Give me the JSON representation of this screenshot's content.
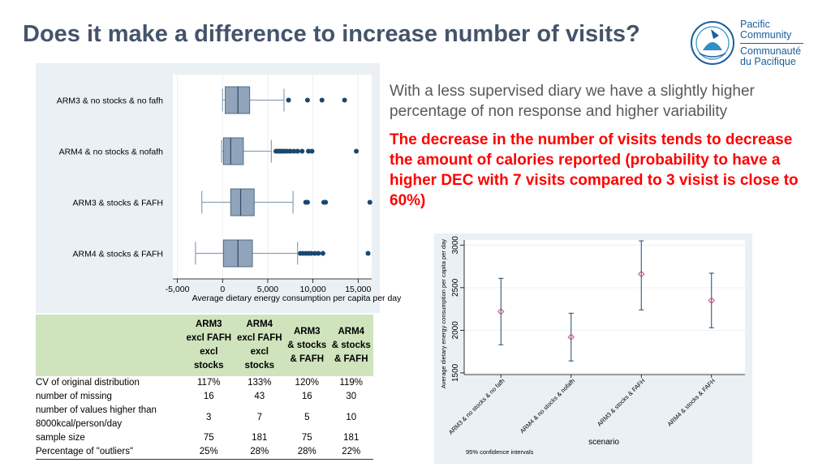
{
  "title": "Does it make a difference to increase number of visits?",
  "logo": {
    "line1": "Pacific",
    "line2": "Community",
    "line3": "Communauté",
    "line4": "du Pacifique"
  },
  "text_grey": "With a less supervised diary we have a slightly higher percentage of non response and higher variability",
  "text_red": "The decrease in the number of visits tends to decrease the amount of calories reported (probability to have a higher DEC with 7 visits compared to 3 visist is close to 60%)",
  "table": {
    "headers": [
      [
        "ARM3",
        "excl FAFH",
        "excl",
        "stocks"
      ],
      [
        "ARM4",
        "excl FAFH",
        "excl",
        "stocks"
      ],
      [
        "ARM3",
        "& stocks",
        "& FAFH"
      ],
      [
        "ARM4",
        "& stocks",
        "& FAFH"
      ]
    ],
    "rows": [
      {
        "label": [
          "CV of original distribution"
        ],
        "values": [
          "117%",
          "133%",
          "120%",
          "119%"
        ]
      },
      {
        "label": [
          "number of missing"
        ],
        "values": [
          "16",
          "43",
          "16",
          "30"
        ]
      },
      {
        "label": [
          "number of values higher than",
          "8000kcal/person/day"
        ],
        "values": [
          "3",
          "7",
          "5",
          "10"
        ]
      },
      {
        "label": [
          "sample size"
        ],
        "values": [
          "75",
          "181",
          "75",
          "181"
        ]
      },
      {
        "label": [
          "Percentage of \"outliers\""
        ],
        "values": [
          "25%",
          "28%",
          "28%",
          "22%"
        ]
      }
    ]
  },
  "chart_data": [
    {
      "type": "box",
      "orientation": "horizontal",
      "xlabel": "Average dietary energy consumption per capita per day",
      "xlim": [
        -5500,
        16500
      ],
      "xticks": [
        -5000,
        0,
        5000,
        10000,
        15000
      ],
      "xtick_labels": [
        "-5,000",
        "0",
        "5,000",
        "10,000",
        "15,000"
      ],
      "colors": {
        "box": "#90a4bb",
        "outlier": "#1a476f"
      },
      "groups": [
        {
          "label": "ARM3 & no stocks & no fafh",
          "whisker_low": 0,
          "q1": 300,
          "median": 1700,
          "q3": 3000,
          "whisker_high": 6800,
          "outliers": [
            7300,
            9400,
            11000,
            13500
          ]
        },
        {
          "label": "ARM4 & no stocks & nofafh",
          "whisker_low": -100,
          "q1": 100,
          "median": 900,
          "q3": 2300,
          "whisker_high": 5400,
          "outliers": [
            5900,
            6100,
            6300,
            6500,
            6700,
            6900,
            7200,
            7500,
            7900,
            8300,
            8800,
            9500,
            9900,
            14800
          ]
        },
        {
          "label": "ARM3 & stocks & FAFH",
          "whisker_low": -2300,
          "q1": 900,
          "median": 2000,
          "q3": 3500,
          "whisker_high": 7800,
          "outliers": [
            9200,
            9400,
            11200,
            11400,
            16300
          ]
        },
        {
          "label": "ARM4 & stocks & FAFH",
          "whisker_low": -3000,
          "q1": 100,
          "median": 1700,
          "q3": 3300,
          "whisker_high": 8300,
          "outliers": [
            8600,
            8900,
            9200,
            9500,
            9800,
            10200,
            10600,
            11100,
            16100
          ]
        }
      ]
    },
    {
      "type": "errorbar",
      "ylabel": "Average dietary energy consumption per capita per day",
      "xlabel": "scenario",
      "note": "95% confidence intervals",
      "ylim": [
        1480,
        3060
      ],
      "yticks": [
        1500,
        2000,
        2500,
        3000
      ],
      "colors": {
        "marker": "#c0507a",
        "bar": "#1a476f"
      },
      "categories": [
        "ARM3 & no stocks & no fafh",
        "ARM4 & no stocks & nofafh",
        "ARM3 & stocks & FAFH",
        "ARM4 & stocks & FAFH"
      ],
      "mean": [
        2220,
        1920,
        2660,
        2350
      ],
      "ci_low": [
        1830,
        1640,
        2240,
        2030
      ],
      "ci_high": [
        2610,
        2200,
        3050,
        2670
      ]
    }
  ]
}
